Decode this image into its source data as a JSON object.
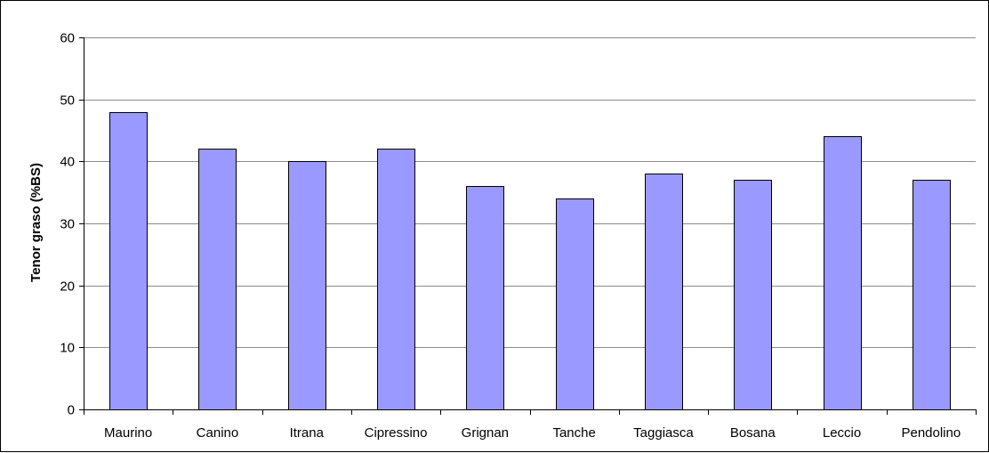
{
  "chart_data": {
    "type": "bar",
    "title": "",
    "xlabel": "",
    "ylabel": "Tenor graso (%BS)",
    "categories": [
      "Maurino",
      "Canino",
      "Itrana",
      "Cipressino",
      "Grignan",
      "Tanche",
      "Taggiasca",
      "Bosana",
      "Leccio",
      "Pendolino"
    ],
    "values": [
      48,
      42,
      40,
      42,
      36,
      34,
      38,
      37,
      44,
      37
    ],
    "ylim": [
      0,
      60
    ],
    "yticks": [
      0,
      10,
      20,
      30,
      40,
      50,
      60
    ],
    "grid": true,
    "legend": "none",
    "colors": {
      "bar_fill": "#9999ff",
      "bar_stroke": "#000000",
      "grid": "#8c8c8c",
      "axis": "#000000"
    }
  }
}
